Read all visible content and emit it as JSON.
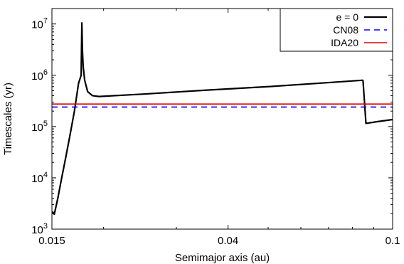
{
  "chart_data": {
    "type": "line",
    "title": "",
    "xlabel": "Semimajor axis (au)",
    "ylabel": "Timescales (yr)",
    "x_scale": "log",
    "y_scale": "log",
    "xlim": [
      0.015,
      0.1
    ],
    "ylim": [
      1000,
      20000000
    ],
    "x_ticks": [
      {
        "value": 0.015,
        "label": "0.015"
      },
      {
        "value": 0.04,
        "label": "0.04"
      },
      {
        "value": 0.1,
        "label": "0.1"
      }
    ],
    "y_ticks": [
      {
        "value": 1000,
        "base": "10",
        "exp": "3"
      },
      {
        "value": 10000,
        "base": "10",
        "exp": "4"
      },
      {
        "value": 100000,
        "base": "10",
        "exp": "5"
      },
      {
        "value": 1000000,
        "base": "10",
        "exp": "6"
      },
      {
        "value": 10000000,
        "base": "10",
        "exp": "7"
      }
    ],
    "grid": false,
    "legend_position": "top-right",
    "series": [
      {
        "name": "e = 0",
        "color": "#000000",
        "style": "solid",
        "points": [
          [
            0.01505,
            2200
          ],
          [
            0.0152,
            1950
          ],
          [
            0.0155,
            4000
          ],
          [
            0.0158,
            9000
          ],
          [
            0.0162,
            25000
          ],
          [
            0.0166,
            70000
          ],
          [
            0.017,
            200000
          ],
          [
            0.0174,
            700000
          ],
          [
            0.01765,
            1000000
          ],
          [
            0.01772,
            10500000
          ],
          [
            0.01778,
            3000000
          ],
          [
            0.01785,
            1500000
          ],
          [
            0.018,
            800000
          ],
          [
            0.0183,
            480000
          ],
          [
            0.0188,
            400000
          ],
          [
            0.0195,
            385000
          ],
          [
            0.025,
            430000
          ],
          [
            0.035,
            510000
          ],
          [
            0.05,
            600000
          ],
          [
            0.07,
            720000
          ],
          [
            0.0845,
            800000
          ],
          [
            0.0848,
            790000
          ],
          [
            0.0862,
            115000
          ],
          [
            0.092,
            125000
          ],
          [
            0.1,
            137000
          ]
        ]
      },
      {
        "name": "CN08",
        "color": "#0000ff",
        "style": "dashed",
        "points": [
          [
            0.015,
            240000
          ],
          [
            0.1,
            240000
          ]
        ]
      },
      {
        "name": "IDA20",
        "color": "#e00000",
        "style": "solid",
        "points": [
          [
            0.015,
            275000
          ],
          [
            0.1,
            275000
          ]
        ]
      }
    ]
  }
}
